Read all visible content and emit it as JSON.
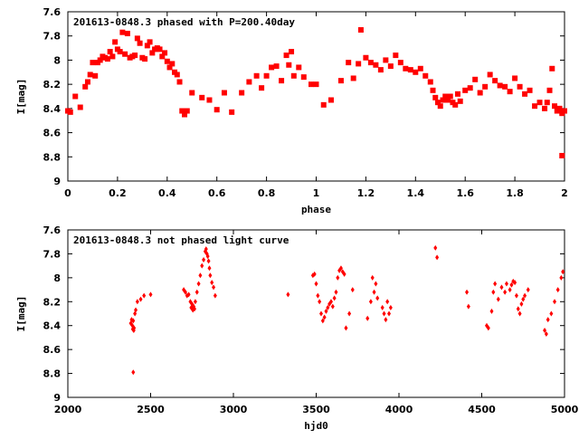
{
  "chart_data": [
    {
      "type": "scatter",
      "title": "201613-0848.3 phased with P=200.40day",
      "xlabel": "phase",
      "ylabel": "I[mag]",
      "xlim": [
        0,
        2
      ],
      "ylim": [
        7.6,
        9
      ],
      "y_inverted": true,
      "grid": false,
      "marker": "filled-square",
      "color": "#ff0000",
      "xticks": [
        "0",
        "0.2",
        "0.4",
        "0.6",
        "0.8",
        "1",
        "1.2",
        "1.4",
        "1.6",
        "1.8",
        "2"
      ],
      "yticks": [
        "7.6",
        "7.8",
        "8",
        "8.2",
        "8.4",
        "8.6",
        "8.8",
        "9"
      ],
      "series": [
        {
          "x": [
            0.0,
            0.01,
            0.03,
            0.05,
            0.07,
            0.08,
            0.09,
            0.1,
            0.11,
            0.12,
            0.13,
            0.14,
            0.15,
            0.16,
            0.17,
            0.18,
            0.19,
            0.2,
            0.21,
            0.22,
            0.23,
            0.24,
            0.25,
            0.26,
            0.27,
            0.28,
            0.29,
            0.3,
            0.31,
            0.32,
            0.33,
            0.34,
            0.35,
            0.36,
            0.37,
            0.38,
            0.39,
            0.4,
            0.41,
            0.42,
            0.43,
            0.44,
            0.45,
            0.46,
            0.47,
            0.48,
            0.5,
            0.54,
            0.57,
            0.6,
            0.63,
            0.66,
            0.7,
            0.73,
            0.76,
            0.78,
            0.8,
            0.82,
            0.84,
            0.86,
            0.88,
            0.89,
            0.9,
            0.91,
            0.93,
            0.95,
            0.98,
            1.0,
            1.03,
            1.06,
            1.1,
            1.13,
            1.15,
            1.17,
            1.18,
            1.2,
            1.22,
            1.24,
            1.26,
            1.28,
            1.3,
            1.32,
            1.34,
            1.36,
            1.38,
            1.4,
            1.42,
            1.44,
            1.46,
            1.47,
            1.48,
            1.49,
            1.5,
            1.51,
            1.52,
            1.53,
            1.54,
            1.55,
            1.56,
            1.57,
            1.58,
            1.6,
            1.62,
            1.64,
            1.66,
            1.68,
            1.7,
            1.72,
            1.74,
            1.76,
            1.78,
            1.8,
            1.82,
            1.84,
            1.86,
            1.88,
            1.9,
            1.92,
            1.93,
            1.94,
            1.95,
            1.96,
            1.97,
            1.98,
            1.99,
            2.0,
            1.99
          ],
          "y": [
            8.42,
            8.43,
            8.3,
            8.39,
            8.22,
            8.18,
            8.12,
            8.02,
            8.13,
            8.02,
            8.0,
            7.97,
            7.98,
            7.99,
            7.93,
            7.97,
            7.85,
            7.91,
            7.93,
            7.77,
            7.95,
            7.78,
            7.98,
            7.97,
            7.96,
            7.82,
            7.86,
            7.98,
            7.99,
            7.88,
            7.85,
            7.94,
            7.91,
            7.9,
            7.91,
            7.97,
            7.94,
            8.01,
            8.06,
            8.03,
            8.1,
            8.12,
            8.18,
            8.42,
            8.45,
            8.42,
            8.27,
            8.31,
            8.33,
            8.41,
            8.27,
            8.43,
            8.27,
            8.18,
            8.13,
            8.23,
            8.13,
            8.06,
            8.05,
            8.17,
            7.96,
            8.04,
            7.93,
            8.13,
            8.06,
            8.14,
            8.2,
            8.2,
            8.37,
            8.33,
            8.17,
            8.02,
            8.15,
            8.03,
            7.75,
            7.98,
            8.02,
            8.04,
            8.08,
            8.0,
            8.05,
            7.96,
            8.02,
            8.07,
            8.08,
            8.1,
            8.07,
            8.13,
            8.18,
            8.25,
            8.31,
            8.35,
            8.38,
            8.33,
            8.3,
            8.33,
            8.3,
            8.35,
            8.37,
            8.28,
            8.34,
            8.25,
            8.23,
            8.16,
            8.27,
            8.22,
            8.12,
            8.17,
            8.21,
            8.22,
            8.26,
            8.15,
            8.22,
            8.28,
            8.25,
            8.38,
            8.35,
            8.4,
            8.35,
            8.25,
            8.07,
            8.38,
            8.42,
            8.4,
            8.44,
            8.42,
            8.79
          ]
        }
      ]
    },
    {
      "type": "scatter",
      "title": "201613-0848.3 not phased light curve",
      "xlabel": "hjd0",
      "ylabel": "I[mag]",
      "xlim": [
        2000,
        5000
      ],
      "ylim": [
        7.6,
        9
      ],
      "y_inverted": true,
      "grid": false,
      "marker": "small-diamond",
      "color": "#ff0000",
      "xticks": [
        "2000",
        "2500",
        "3000",
        "3500",
        "4000",
        "4500",
        "5000"
      ],
      "yticks": [
        "7.6",
        "7.8",
        "8",
        "8.2",
        "8.4",
        "8.6",
        "8.8",
        "9"
      ],
      "series": [
        {
          "x": [
            2380,
            2385,
            2390,
            2392,
            2395,
            2398,
            2400,
            2405,
            2410,
            2420,
            2440,
            2460,
            2500,
            2395,
            2700,
            2710,
            2720,
            2730,
            2740,
            2745,
            2750,
            2755,
            2760,
            2765,
            2770,
            2780,
            2790,
            2800,
            2810,
            2820,
            2830,
            2835,
            2840,
            2845,
            2850,
            2855,
            2860,
            2870,
            2880,
            2890,
            3330,
            3480,
            3490,
            3500,
            3510,
            3520,
            3530,
            3540,
            3550,
            3560,
            3570,
            3580,
            3590,
            3600,
            3610,
            3620,
            3630,
            3640,
            3650,
            3660,
            3670,
            3680,
            3700,
            3720,
            3810,
            3830,
            3840,
            3850,
            3860,
            3870,
            3900,
            3910,
            3920,
            3930,
            3940,
            3950,
            4220,
            4230,
            4410,
            4420,
            4530,
            4540,
            4560,
            4570,
            4580,
            4600,
            4620,
            4640,
            4650,
            4670,
            4680,
            4690,
            4700,
            4710,
            4720,
            4730,
            4740,
            4750,
            4760,
            4780,
            4880,
            4890,
            4900,
            4920,
            4940,
            4960,
            4980,
            4990
          ],
          "y": [
            8.38,
            8.35,
            8.4,
            8.43,
            8.36,
            8.44,
            8.42,
            8.3,
            8.27,
            8.2,
            8.18,
            8.15,
            8.14,
            8.79,
            8.1,
            8.12,
            8.15,
            8.14,
            8.2,
            8.25,
            8.22,
            8.27,
            8.24,
            8.26,
            8.2,
            8.12,
            8.05,
            7.98,
            7.9,
            7.85,
            7.78,
            7.76,
            7.8,
            7.82,
            7.86,
            7.92,
            7.98,
            8.04,
            8.08,
            8.15,
            8.14,
            7.98,
            7.97,
            8.05,
            8.15,
            8.2,
            8.3,
            8.36,
            8.33,
            8.28,
            8.25,
            8.22,
            8.2,
            8.24,
            8.17,
            8.12,
            8.0,
            7.94,
            7.92,
            7.95,
            7.97,
            8.42,
            8.3,
            8.1,
            8.34,
            8.2,
            8.0,
            8.12,
            8.05,
            8.17,
            8.25,
            8.3,
            8.35,
            8.2,
            8.3,
            8.25,
            7.75,
            7.83,
            8.12,
            8.24,
            8.4,
            8.42,
            8.28,
            8.12,
            8.05,
            8.18,
            8.08,
            8.12,
            8.05,
            8.1,
            8.06,
            8.03,
            8.04,
            8.15,
            8.26,
            8.3,
            8.22,
            8.18,
            8.15,
            8.1,
            8.44,
            8.47,
            8.35,
            8.3,
            8.2,
            8.1,
            8.0,
            7.95
          ]
        }
      ]
    }
  ]
}
